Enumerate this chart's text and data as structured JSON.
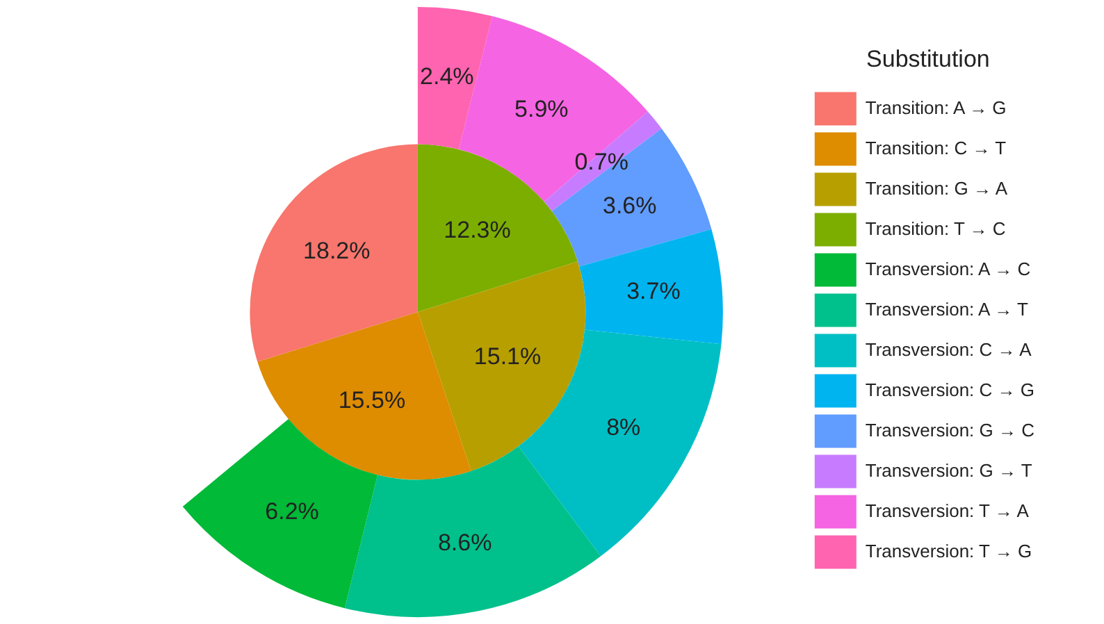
{
  "chart_data": {
    "type": "pie",
    "legend_title": "Substitution",
    "legend": "right",
    "categories": [
      "Transition: A → G",
      "Transition: C → T",
      "Transition: G → A",
      "Transition: T → C",
      "Transversion: A → C",
      "Transversion: A → T",
      "Transversion: C → A",
      "Transversion: C → G",
      "Transversion: G → C",
      "Transversion: G → T",
      "Transversion: T → A",
      "Transversion: T → G"
    ],
    "colors": [
      "#f8766d",
      "#de8c00",
      "#b79f00",
      "#7cae00",
      "#00ba38",
      "#00c08b",
      "#00bfc4",
      "#00b4f0",
      "#619cff",
      "#c77cff",
      "#f564e3",
      "#ff64b0"
    ],
    "series": [
      {
        "values": [
          18.2,
          15.5,
          15.1,
          12.3,
          null,
          null,
          null,
          null,
          null,
          null,
          null,
          null
        ],
        "value_labels": [
          "18.2%",
          "15.5%",
          "15.1%",
          "12.3%",
          null,
          null,
          null,
          null,
          null,
          null,
          null,
          null
        ]
      },
      {
        "values": [
          null,
          null,
          null,
          null,
          6.2,
          8.6,
          8,
          3.7,
          3.6,
          0.7,
          5.9,
          2.4
        ],
        "value_labels": [
          null,
          null,
          null,
          null,
          "6.2%",
          "8.6%",
          "8%",
          "3.7%",
          "3.6%",
          "0.7%",
          "5.9%",
          "2.4%"
        ]
      }
    ]
  }
}
